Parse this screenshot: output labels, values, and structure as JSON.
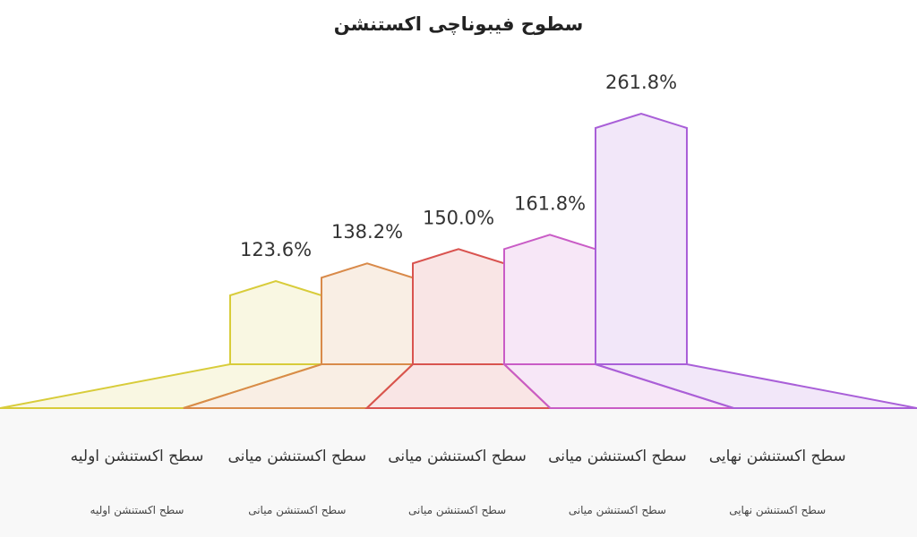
{
  "chart_data": {
    "type": "bar",
    "title": "سطوح فیبوناچی اکستنشن",
    "categories": [
      "سطح اکستنشن اولیه",
      "سطح اکستنشن میانی",
      "سطح اکستنشن میانی",
      "سطح اکستنشن میانی",
      "سطح اکستنشن نهایی"
    ],
    "descriptions": [
      "سطح اکستنشن اولیه",
      "سطح اکستنشن میانی",
      "سطح اکستنشن میانی",
      "سطح اکستنشن میانی",
      "سطح اکستنشن نهایی"
    ],
    "values": [
      123.6,
      138.2,
      150.0,
      161.8,
      261.8
    ],
    "value_labels": [
      "123.6%",
      "138.2%",
      "150.0%",
      "161.8%",
      "261.8%"
    ],
    "colors": [
      "#d8cc3a",
      "#d98a4a",
      "#d9534f",
      "#c95cc6",
      "#a95fd8"
    ]
  }
}
